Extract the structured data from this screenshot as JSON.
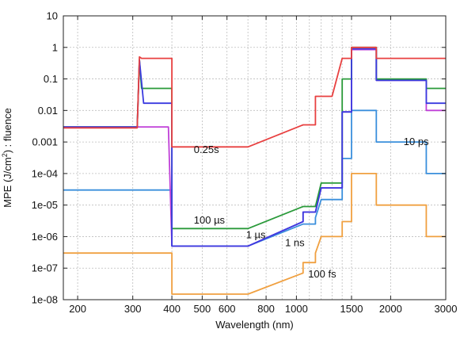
{
  "chart_data": {
    "type": "line",
    "x_scale": "log",
    "y_scale": "log",
    "xlim": [
      180,
      3000
    ],
    "ylim": [
      1e-08,
      10
    ],
    "grid": true,
    "legend": "none",
    "xlabel": "Wavelength (nm)",
    "ylabel": "MPE (J/cm2) : fluence",
    "ylabel_parts": {
      "prefix": "MPE (J/cm",
      "sup": "2",
      "suffix": ") : fluence"
    },
    "x_ticks": [
      {
        "value": 200,
        "label": "200"
      },
      {
        "value": 300,
        "label": "300"
      },
      {
        "value": 400,
        "label": "400"
      },
      {
        "value": 500,
        "label": "500"
      },
      {
        "value": 600,
        "label": "600"
      },
      {
        "value": 800,
        "label": "800"
      },
      {
        "value": 1000,
        "label": "1000"
      },
      {
        "value": 1500,
        "label": "1500"
      },
      {
        "value": 2000,
        "label": "2000"
      },
      {
        "value": 3000,
        "label": "3000"
      }
    ],
    "x_minor_grid": [
      700,
      900,
      1100,
      1200,
      1300,
      1400
    ],
    "y_ticks": [
      {
        "value": 10,
        "label": "10"
      },
      {
        "value": 1,
        "label": "1"
      },
      {
        "value": 0.1,
        "label": "0.1"
      },
      {
        "value": 0.01,
        "label": "0.01"
      },
      {
        "value": 0.001,
        "label": "0.001"
      },
      {
        "value": 0.0001,
        "label": "1e-04"
      },
      {
        "value": 1e-05,
        "label": "1e-05"
      },
      {
        "value": 1e-06,
        "label": "1e-06"
      },
      {
        "value": 1e-07,
        "label": "1e-07"
      },
      {
        "value": 1e-08,
        "label": "1e-08"
      }
    ],
    "series": [
      {
        "color": "#f0a040",
        "points": [
          [
            180,
            3e-07
          ],
          [
            400,
            3e-07
          ],
          [
            400,
            1.5e-08
          ],
          [
            700,
            1.5e-08
          ],
          [
            1050,
            7e-08
          ],
          [
            1050,
            1.5e-07
          ],
          [
            1150,
            1.5e-07
          ],
          [
            1150,
            3e-07
          ],
          [
            1200,
            1e-06
          ],
          [
            1400,
            1e-06
          ],
          [
            1400,
            3e-06
          ],
          [
            1500,
            3e-06
          ],
          [
            1500,
            0.0001
          ],
          [
            1800,
            0.0001
          ],
          [
            1800,
            1e-05
          ],
          [
            2600,
            1e-05
          ],
          [
            2600,
            1e-06
          ],
          [
            3000,
            1e-06
          ]
        ]
      },
      {
        "color": "#3a8fdc",
        "points": [
          [
            180,
            3e-05
          ],
          [
            400,
            3e-05
          ],
          [
            400,
            5e-07
          ],
          [
            700,
            5e-07
          ],
          [
            1050,
            2.5e-06
          ],
          [
            1050,
            2.5e-06
          ],
          [
            1150,
            2.5e-06
          ],
          [
            1150,
            4e-06
          ],
          [
            1200,
            1.5e-05
          ],
          [
            1400,
            1.5e-05
          ],
          [
            1400,
            0.0003
          ],
          [
            1500,
            0.0003
          ],
          [
            1500,
            0.01
          ],
          [
            1800,
            0.01
          ],
          [
            1800,
            0.001
          ],
          [
            2600,
            0.001
          ],
          [
            2600,
            0.0001
          ],
          [
            3000,
            0.0001
          ]
        ]
      },
      {
        "color": "#c040d8",
        "points": [
          [
            180,
            0.003
          ],
          [
            310,
            0.003
          ],
          [
            310,
            0.003
          ],
          [
            390,
            0.003
          ],
          [
            400,
            5e-07
          ],
          [
            700,
            5e-07
          ],
          [
            1050,
            3e-06
          ],
          [
            1050,
            6e-06
          ],
          [
            1150,
            6e-06
          ],
          [
            1200,
            3.5e-05
          ],
          [
            1400,
            3.5e-05
          ],
          [
            1400,
            0.009
          ],
          [
            1500,
            0.009
          ],
          [
            1500,
            0.85
          ],
          [
            1800,
            0.85
          ],
          [
            1800,
            0.09
          ],
          [
            2600,
            0.09
          ],
          [
            2600,
            0.01
          ],
          [
            3000,
            0.01
          ]
        ]
      },
      {
        "color": "#2a9a3a",
        "points": [
          [
            180,
            0.003
          ],
          [
            310,
            0.003
          ],
          [
            315,
            0.4
          ],
          [
            320,
            0.05
          ],
          [
            400,
            0.05
          ],
          [
            400,
            1.8e-06
          ],
          [
            700,
            1.8e-06
          ],
          [
            1050,
            9e-06
          ],
          [
            1150,
            9e-06
          ],
          [
            1200,
            5e-05
          ],
          [
            1400,
            5e-05
          ],
          [
            1400,
            0.1
          ],
          [
            1500,
            0.1
          ],
          [
            1500,
            1
          ],
          [
            1800,
            1
          ],
          [
            1800,
            0.1
          ],
          [
            2600,
            0.1
          ],
          [
            2600,
            0.05
          ],
          [
            3000,
            0.05
          ]
        ]
      },
      {
        "color": "#3a3ae0",
        "points": [
          [
            180,
            0.003
          ],
          [
            310,
            0.003
          ],
          [
            315,
            0.4
          ],
          [
            325,
            0.017
          ],
          [
            400,
            0.017
          ],
          [
            400,
            5e-07
          ],
          [
            700,
            5e-07
          ],
          [
            1050,
            3e-06
          ],
          [
            1050,
            6e-06
          ],
          [
            1150,
            6e-06
          ],
          [
            1200,
            3.5e-05
          ],
          [
            1400,
            3.5e-05
          ],
          [
            1400,
            0.009
          ],
          [
            1500,
            0.009
          ],
          [
            1500,
            0.9
          ],
          [
            1800,
            0.9
          ],
          [
            1800,
            0.09
          ],
          [
            2600,
            0.09
          ],
          [
            2600,
            0.017
          ],
          [
            3000,
            0.017
          ]
        ]
      },
      {
        "color": "#e84040",
        "points": [
          [
            180,
            0.0028
          ],
          [
            310,
            0.0028
          ],
          [
            315,
            0.5
          ],
          [
            320,
            0.45
          ],
          [
            400,
            0.45
          ],
          [
            400,
            0.0007
          ],
          [
            700,
            0.0007
          ],
          [
            1050,
            0.0035
          ],
          [
            1150,
            0.0035
          ],
          [
            1150,
            0.028
          ],
          [
            1300,
            0.028
          ],
          [
            1400,
            0.45
          ],
          [
            1500,
            0.45
          ],
          [
            1500,
            1
          ],
          [
            1800,
            1
          ],
          [
            1800,
            0.45
          ],
          [
            3000,
            0.45
          ]
        ]
      }
    ],
    "annotations": [
      {
        "text": "0.25s",
        "x": 470,
        "y": 0.00045
      },
      {
        "text": "100 µs",
        "x": 470,
        "y": 2.6e-06
      },
      {
        "text": "1 µs",
        "x": 690,
        "y": 9e-07
      },
      {
        "text": "1 ns",
        "x": 920,
        "y": 5e-07
      },
      {
        "text": "100 fs",
        "x": 1090,
        "y": 5e-08
      },
      {
        "text": "10 ps",
        "x": 2200,
        "y": 0.0008
      }
    ]
  }
}
